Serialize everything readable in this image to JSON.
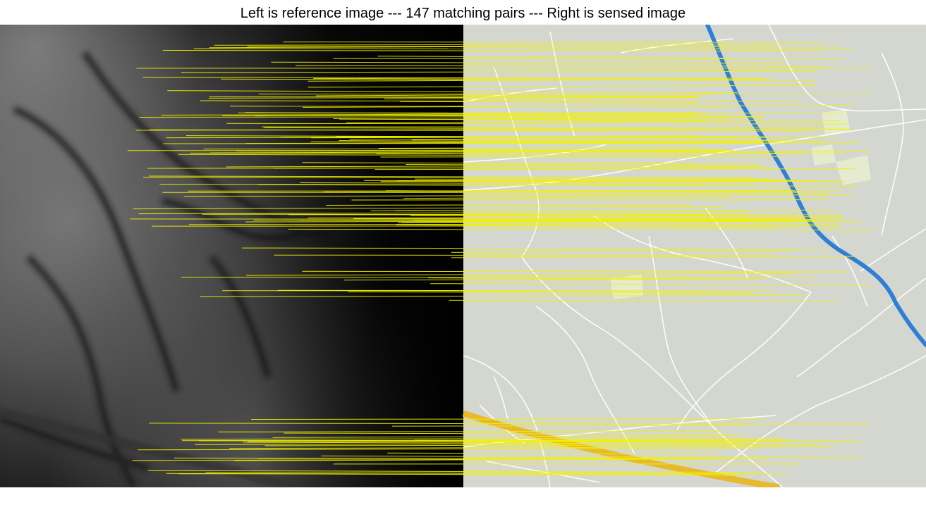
{
  "title": "Left is reference image --- 147 matching pairs --- Right is sensed image",
  "panels": {
    "reference": {
      "kind": "grayscale-elevation-image"
    },
    "sensed": {
      "kind": "street-map-image"
    }
  },
  "match_lines": {
    "count": 147,
    "color": "#f2f200"
  },
  "colors": {
    "map_background": "#d4d7cf",
    "road": "#ffffff",
    "river": "#2f7fd4",
    "highway": "#e7ba2e",
    "park": "#e5ebcf",
    "match": "#f2f200"
  }
}
